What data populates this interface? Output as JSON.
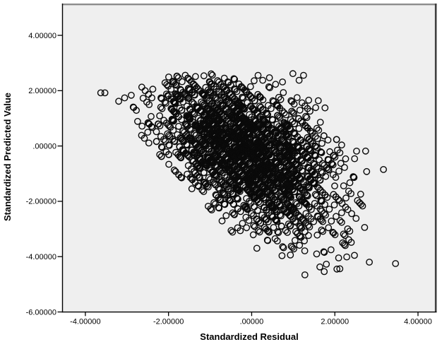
{
  "chart_data": {
    "type": "scatter",
    "title": "",
    "xlabel": "Standardized Residual",
    "ylabel": "Standardized Predicted Value",
    "xlim": [
      -4.55,
      4.45
    ],
    "ylim": [
      -6.0,
      5.15
    ],
    "x_ticks": [
      -4,
      -2,
      0,
      2,
      4
    ],
    "x_tick_labels": [
      "-4.00000",
      "-2.00000",
      ".00000",
      "2.00000",
      "4.00000"
    ],
    "y_ticks": [
      4,
      2,
      0,
      -2,
      -4,
      -6
    ],
    "y_tick_labels": [
      "4.00000",
      "2.00000",
      ".00000",
      "-2.00000",
      "-4.00000",
      "-6.00000"
    ],
    "grid": false,
    "legend": null,
    "plot_background": "#efefef",
    "frame": {
      "top_color": "#8c8c8c",
      "right_color": "#3f3f3f",
      "left_color": "#000000",
      "bottom_color": "#000000"
    },
    "marker": {
      "shape": "open-circle",
      "radius_px": 4.2,
      "stroke": "#0a0a0a",
      "stroke_width_px": 1.4,
      "fill": "none"
    },
    "n_points": 2400,
    "pattern": "Dense negatively-correlated cloud of hollow circles arranged in parallel diagonal stripes (stripe slope about -1.6 in data units), typical of an SPSS residual-vs-predicted scatterplot for a discrete outcome; bulk spans x from -3.2 to 3.2 and y from -4.6 to 2.6, densest near (-0.2, 0), sparse lower-right tail.",
    "generator": {
      "seed": 7,
      "n": 2400,
      "x_mean": -0.15,
      "x_sd": 1.1,
      "y_intercept": -0.3,
      "xy_slope": -0.65,
      "noise_sd": 1.25,
      "stripe_slope": 1.6,
      "stripe_step": 0.35,
      "x_range": [
        -3.2,
        3.25
      ],
      "y_range": [
        -4.62,
        2.62
      ],
      "v_range": [
        -3.85,
        5.25
      ],
      "edge_thin_beyond": [
        -2.7,
        2.9
      ],
      "edge_thin_keep_prob": 0.5
    },
    "outlier_points": [
      [
        -3.63,
        1.92
      ],
      [
        -3.53,
        1.92
      ],
      [
        1.28,
        -4.66
      ],
      [
        2.05,
        -4.45
      ],
      [
        2.12,
        -4.44
      ],
      [
        2.83,
        -4.2
      ],
      [
        3.46,
        -4.25
      ],
      [
        3.17,
        -0.85
      ]
    ]
  }
}
